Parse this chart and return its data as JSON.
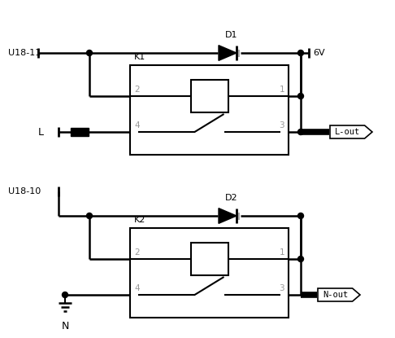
{
  "background_color": "#ffffff",
  "line_color": "#000000",
  "gray_color": "#999999",
  "labels": {
    "U18_11": "U18-11",
    "U18_10": "U18-10",
    "D1": "D1",
    "D2": "D2",
    "K1": "K1",
    "K2": "K2",
    "6V": "6V",
    "L": "L",
    "N": "N",
    "L_out": "L-out",
    "N_out": "N-out",
    "pin2": "2",
    "pin1": "1",
    "pin4": "4",
    "pin3": "3"
  },
  "figsize": [
    4.86,
    4.15
  ],
  "dpi": 100
}
